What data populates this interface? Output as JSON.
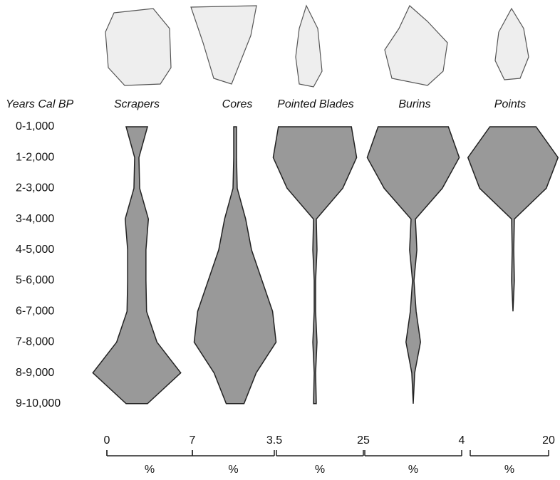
{
  "chart_data": {
    "type": "battleship",
    "y_label": "Years Cal BP",
    "categories": [
      "0-1,000",
      "1-2,000",
      "2-3,000",
      "3-4,000",
      "4-5,000",
      "5-6,000",
      "6-7,000",
      "7-8,000",
      "8-9,000",
      "9-10,000"
    ],
    "unit": "%",
    "color": "#999999",
    "series": [
      {
        "name": "Scrapers",
        "xlim": [
          0,
          7
        ],
        "xticks": [
          0,
          7
        ],
        "values": [
          1.75,
          0.35,
          0.47,
          1.9,
          1.5,
          1.5,
          1.6,
          3.3,
          7.2,
          1.75
        ]
      },
      {
        "name": "Cores",
        "xlim": [
          0,
          3.5
        ],
        "xticks": [
          3.5
        ],
        "values": [
          0.12,
          0.12,
          0.18,
          0.9,
          1.4,
          2.3,
          3.2,
          3.5,
          1.8,
          0.76
        ]
      },
      {
        "name": "Pointed Blades",
        "xlim": [
          0,
          25
        ],
        "xticks": [
          25
        ],
        "values": [
          21,
          24,
          16,
          0.8,
          1.2,
          0.4,
          0.4,
          1.2,
          0.4,
          0.8
        ]
      },
      {
        "name": "Burins",
        "xlim": [
          0,
          4
        ],
        "xticks": [
          4
        ],
        "values": [
          2.9,
          3.8,
          2.4,
          0.18,
          0.3,
          0.06,
          0.24,
          0.6,
          0.12,
          0
        ]
      },
      {
        "name": "Points",
        "xlim": [
          0,
          20
        ],
        "xticks": [
          20
        ],
        "values": [
          11.8,
          23,
          17,
          0.7,
          0.4,
          0.7,
          0,
          0,
          0,
          0
        ]
      }
    ]
  }
}
